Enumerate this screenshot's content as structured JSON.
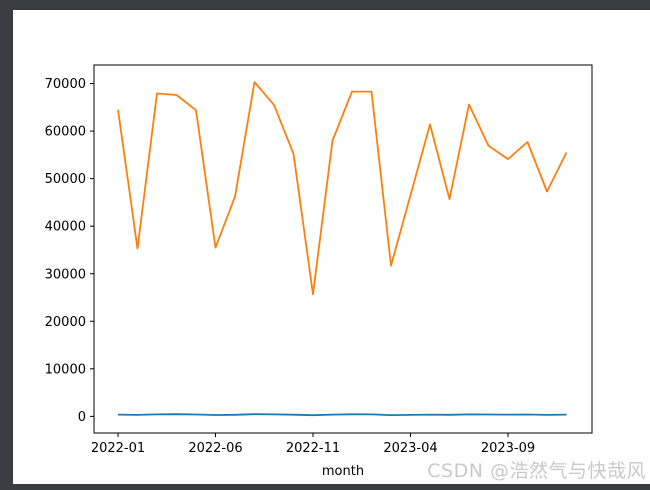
{
  "page": {
    "background_color": "#393d42",
    "figure_background_color": "#ffffff"
  },
  "watermark": {
    "text": "CSDN @浩然气与快哉风",
    "color": "#c9c9c9"
  },
  "chart_data": {
    "type": "line",
    "title": "",
    "xlabel": "month",
    "ylabel": "",
    "grid": false,
    "legend": "none",
    "x": [
      "2022-01",
      "2022-02",
      "2022-03",
      "2022-04",
      "2022-05",
      "2022-06",
      "2022-07",
      "2022-08",
      "2022-09",
      "2022-10",
      "2022-11",
      "2022-12",
      "2023-01",
      "2023-02",
      "2023-03",
      "2023-04",
      "2023-05",
      "2023-06",
      "2023-07",
      "2023-08",
      "2023-09",
      "2023-10",
      "2023-11",
      "2023-12"
    ],
    "x_tick_labels": [
      "2022-01",
      "2022-06",
      "2022-11",
      "2023-04",
      "2023-09"
    ],
    "x_tick_indices": [
      0,
      5,
      10,
      15,
      20
    ],
    "y_ticks": [
      0,
      10000,
      20000,
      30000,
      40000,
      50000,
      60000,
      70000
    ],
    "ylim": [
      -3500,
      73900
    ],
    "axis_color": "#000000",
    "series": [
      {
        "name": "blue_series",
        "color": "#1f77b4",
        "values": [
          380,
          300,
          420,
          450,
          400,
          280,
          320,
          460,
          420,
          350,
          250,
          380,
          430,
          420,
          260,
          300,
          380,
          330,
          410,
          390,
          360,
          400,
          300,
          380
        ]
      },
      {
        "name": "orange_series",
        "color": "#ff7f0e",
        "values": [
          64500,
          35300,
          67900,
          67600,
          64400,
          35500,
          46200,
          70300,
          65500,
          55200,
          25700,
          58000,
          68300,
          68300,
          31700,
          46500,
          61400,
          45700,
          65600,
          56900,
          54100,
          57700,
          47300,
          55500
        ]
      }
    ]
  }
}
